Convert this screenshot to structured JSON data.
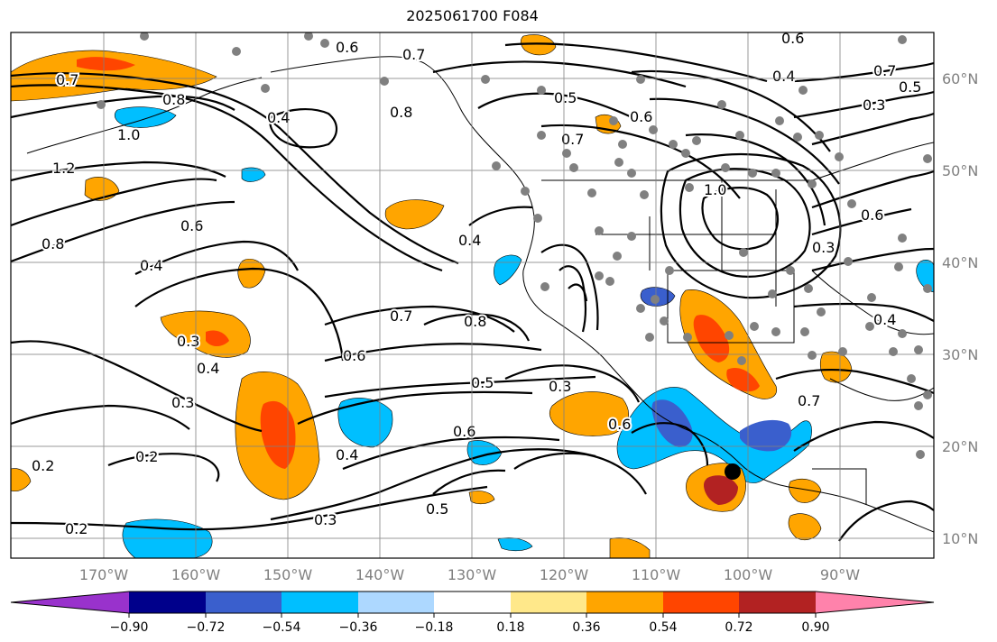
{
  "title": "2025061700 F084",
  "longitude_labels": [
    "170°W",
    "160°W",
    "150°W",
    "140°W",
    "130°W",
    "120°W",
    "110°W",
    "100°W",
    "90°W"
  ],
  "latitude_labels": [
    "60°N",
    "50°N",
    "40°N",
    "30°N",
    "20°N",
    "10°N"
  ],
  "colorbar": {
    "ticks": [
      "−0.90",
      "−0.72",
      "−0.54",
      "−0.36",
      "−0.18",
      "0.18",
      "0.36",
      "0.54",
      "0.72",
      "0.90"
    ],
    "colors": [
      "#9932CC",
      "#00008B",
      "#3A5FCD",
      "#00BFFF",
      "#ADD8FF",
      "#FFFFFF",
      "#FFE88A",
      "#FFA500",
      "#FF4500",
      "#B22222",
      "#FF82AB"
    ]
  },
  "contour_labels": [
    "0.7",
    "0.8",
    "1.0",
    "1.2",
    "0.8",
    "0.6",
    "0.4",
    "0.3",
    "0.4",
    "0.3",
    "0.2",
    "0.2",
    "0.2",
    "0.3",
    "0.4",
    "0.5",
    "0.6",
    "0.7",
    "0.8",
    "0.6",
    "0.5",
    "0.4",
    "0.3",
    "0.6",
    "0.7",
    "0.8",
    "0.5",
    "0.6",
    "0.6",
    "0.7",
    "0.4",
    "0.3",
    "0.5",
    "0.7",
    "0.6",
    "1.0",
    "0.4",
    "0.3",
    "0.7",
    "0.6",
    "0.4"
  ]
}
